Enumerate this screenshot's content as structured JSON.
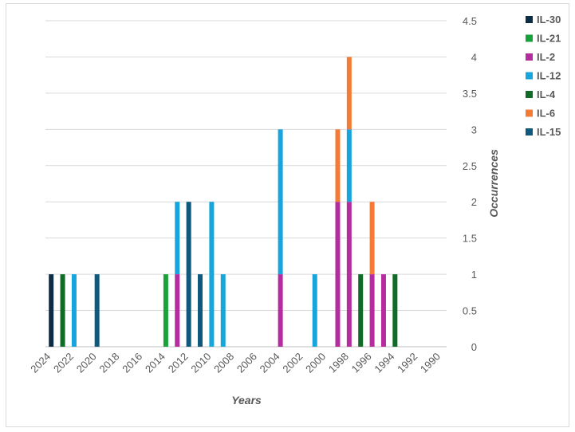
{
  "chart_data": {
    "type": "bar",
    "stacked": true,
    "x_reversed": true,
    "xlabel": "Years",
    "ylabel": "Occurrences",
    "xlim": [
      2024.5,
      1989.5
    ],
    "ylim": [
      0,
      4.5
    ],
    "x_ticks": [
      2024,
      2022,
      2020,
      2018,
      2016,
      2014,
      2012,
      2010,
      2008,
      2006,
      2004,
      2002,
      2000,
      1998,
      1996,
      1994,
      1992,
      1990
    ],
    "y_ticks": [
      0,
      0.5,
      1,
      1.5,
      2,
      2.5,
      3,
      3.5,
      4,
      4.5
    ],
    "grid": true,
    "legend_position": "right",
    "x": [
      2024,
      2023,
      2022,
      2020,
      2014,
      2013,
      2012,
      2011,
      2010,
      2009,
      2004,
      2001,
      1999,
      1998,
      1997,
      1996,
      1995,
      1994
    ],
    "series": [
      {
        "name": "IL-30",
        "color": "#0b2e46",
        "values": [
          1,
          0,
          0,
          0,
          0,
          0,
          0,
          0,
          0,
          0,
          0,
          0,
          0,
          0,
          0,
          0,
          0,
          0
        ]
      },
      {
        "name": "IL-21",
        "color": "#18a23a",
        "values": [
          0,
          0,
          0,
          0,
          1,
          0,
          0,
          0,
          0,
          0,
          0,
          0,
          0,
          0,
          0,
          0,
          0,
          0
        ]
      },
      {
        "name": "IL-2",
        "color": "#b42c9e",
        "values": [
          0,
          0,
          0,
          0,
          0,
          1,
          0,
          0,
          0,
          0,
          1,
          0,
          2,
          2,
          0,
          1,
          1,
          0
        ]
      },
      {
        "name": "IL-12",
        "color": "#16a6dd",
        "values": [
          0,
          0,
          1,
          0,
          0,
          1,
          0,
          0,
          2,
          1,
          2,
          1,
          0,
          1,
          0,
          0,
          0,
          0
        ]
      },
      {
        "name": "IL-4",
        "color": "#0f6b27",
        "values": [
          0,
          1,
          0,
          0,
          0,
          0,
          0,
          0,
          0,
          0,
          0,
          0,
          0,
          0,
          1,
          0,
          0,
          1
        ]
      },
      {
        "name": "IL-6",
        "color": "#f47b35",
        "values": [
          0,
          0,
          0,
          0,
          0,
          0,
          0,
          0,
          0,
          0,
          0,
          0,
          1,
          1,
          0,
          1,
          0,
          0
        ]
      },
      {
        "name": "IL-15",
        "color": "#0f5a7c",
        "values": [
          0,
          0,
          0,
          1,
          0,
          0,
          2,
          1,
          0,
          0,
          0,
          0,
          0,
          0,
          0,
          0,
          0,
          0
        ]
      }
    ]
  }
}
